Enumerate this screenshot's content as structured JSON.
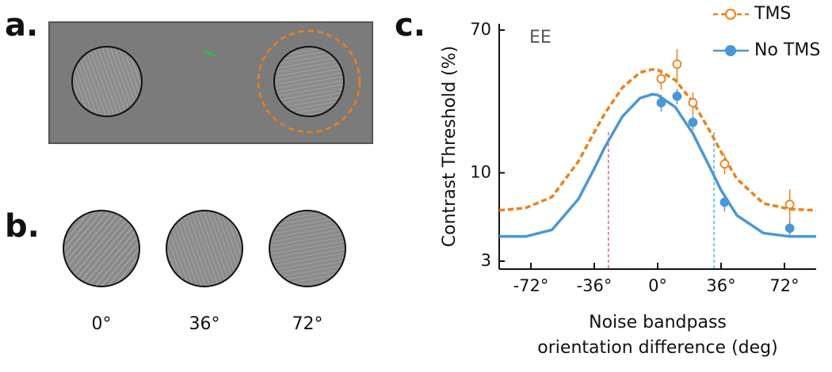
{
  "panels": {
    "a": {
      "label": "a."
    },
    "b": {
      "label": "b.",
      "stimuli": [
        "0°",
        "36°",
        "72°"
      ]
    }
  },
  "chart_data": {
    "type": "line",
    "panel_label": "c.",
    "annotation": "EE",
    "ylabel": "Contrast Threshold (%)",
    "xlabel": [
      "Noise bandpass",
      "orientation difference (deg)"
    ],
    "log_y": true,
    "xlim": [
      -90,
      90
    ],
    "ylim": [
      3,
      70
    ],
    "xticks": [
      {
        "value": -72,
        "label": "-72°"
      },
      {
        "value": -36,
        "label": "-36°"
      },
      {
        "value": 0,
        "label": "0°"
      },
      {
        "value": 36,
        "label": "36°"
      },
      {
        "value": 72,
        "label": "72°"
      }
    ],
    "yticks": [
      3,
      10,
      70
    ],
    "vlines": [
      {
        "value": -28,
        "color": "#e0609a"
      },
      {
        "value": 32,
        "color": "#49b8d8"
      }
    ],
    "fit_x": [
      -90,
      -75,
      -60,
      -45,
      -36,
      -30,
      -20,
      -10,
      -3,
      0,
      10,
      20,
      30,
      36,
      45,
      60,
      75,
      90
    ],
    "series": [
      {
        "name": "TMS",
        "color": "#ef7f1a",
        "dashed": true,
        "open_markers": true,
        "x": [
          2,
          11,
          20,
          38,
          75
        ],
        "values": [
          36,
          44,
          26,
          11.3,
          6.5
        ],
        "errors": [
          5,
          10,
          4,
          1.5,
          1.5
        ],
        "fit_values": [
          6.0,
          6.2,
          7.2,
          11.7,
          17.4,
          22.5,
          32.0,
          39.3,
          41,
          40.7,
          35.4,
          26.3,
          17.4,
          13.3,
          9.2,
          6.6,
          6.1,
          6.0
        ]
      },
      {
        "name": "No TMS",
        "color": "#4b97d5",
        "dashed": false,
        "open_markers": false,
        "x": [
          2,
          11,
          20,
          38,
          75
        ],
        "values": [
          26,
          28.4,
          19.9,
          6.7,
          4.7
        ],
        "errors": [
          3,
          3,
          2,
          0.8,
          0.5
        ],
        "fit_values": [
          4.2,
          4.2,
          4.6,
          7.0,
          10.6,
          14.2,
          21.6,
          27.7,
          29.2,
          28.9,
          24.5,
          17.1,
          10.6,
          7.9,
          5.6,
          4.4,
          4.2,
          4.2
        ]
      }
    ]
  }
}
